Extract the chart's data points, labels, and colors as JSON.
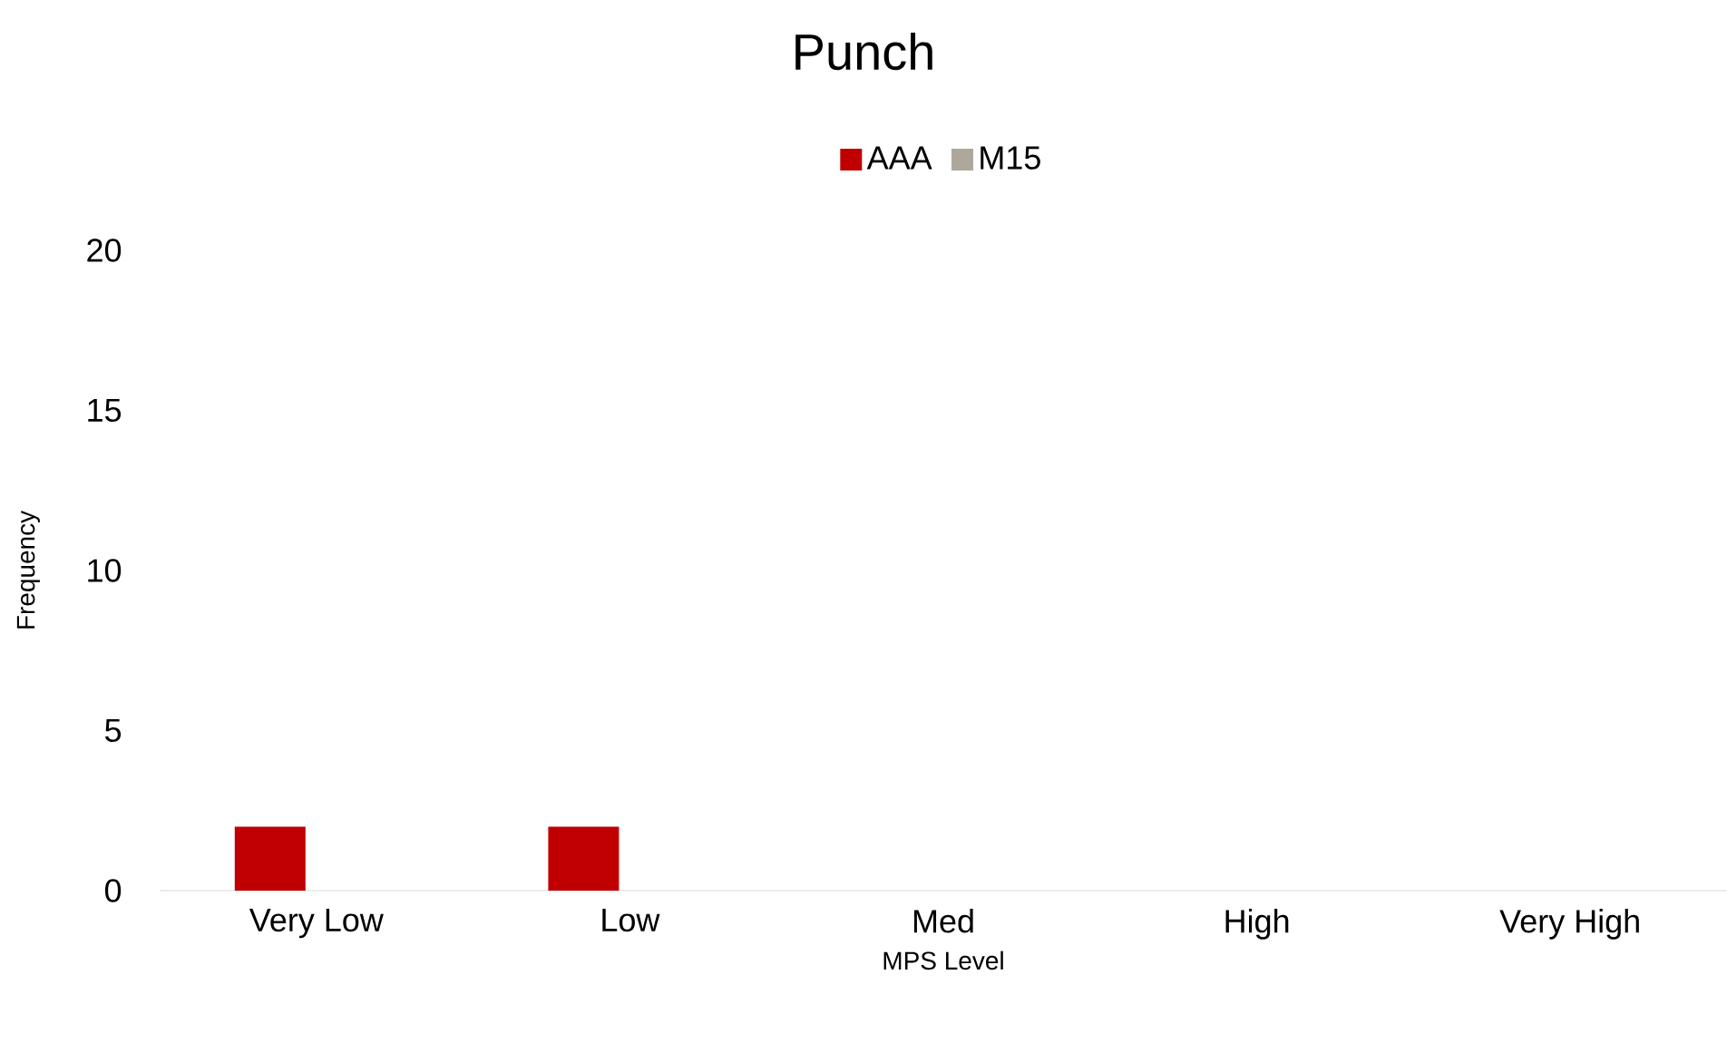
{
  "chart_data": {
    "type": "bar",
    "title": "Punch",
    "xlabel": "MPS Level",
    "ylabel": "Frequency",
    "categories": [
      "Very Low",
      "Low",
      "Med",
      "High",
      "Very High"
    ],
    "series": [
      {
        "name": "AAA",
        "color": "#c00000",
        "values": [
          2,
          2,
          0,
          0,
          0
        ]
      },
      {
        "name": "M15",
        "color": "#aea79c",
        "values": [
          0,
          0,
          0,
          0,
          0
        ]
      }
    ],
    "ylim": [
      0,
      20
    ],
    "yticks": [
      0,
      5,
      10,
      15,
      20
    ],
    "grid": false,
    "legend": "top"
  }
}
